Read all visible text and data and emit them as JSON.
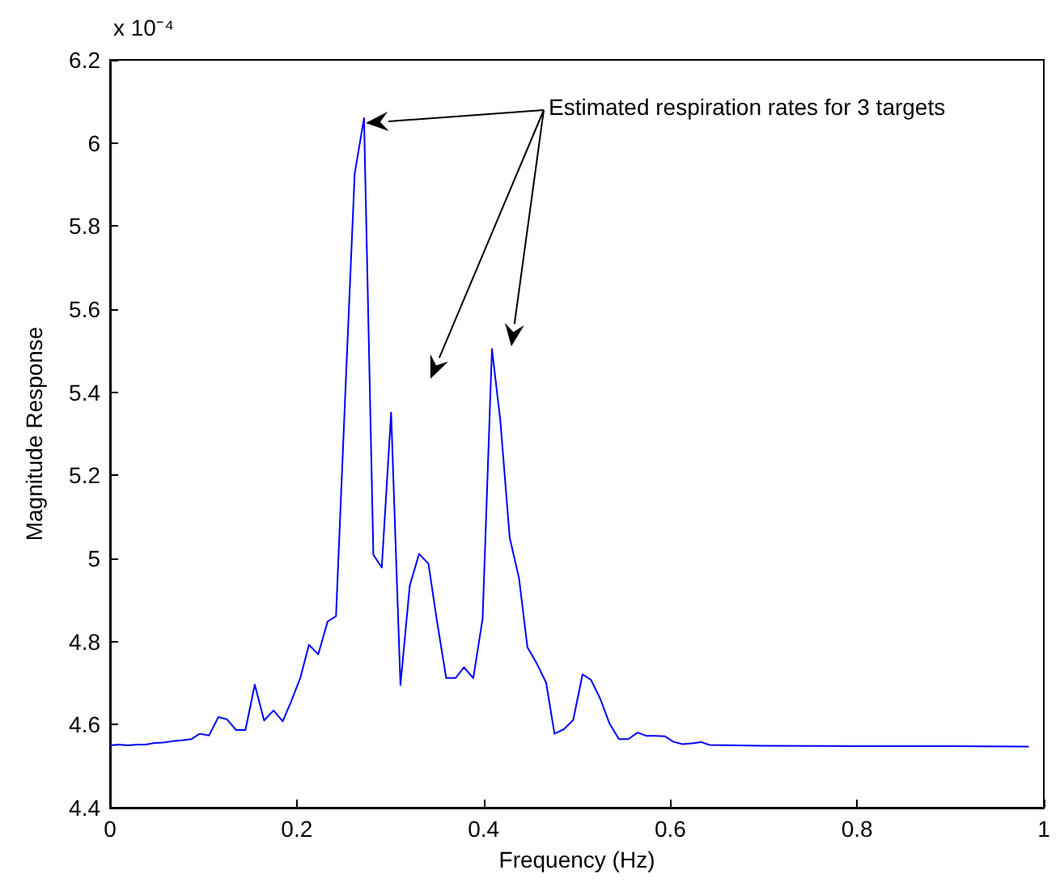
{
  "chart_data": {
    "type": "line",
    "xlabel": "Frequency (Hz)",
    "ylabel": "Magnitude Response",
    "annotations": [
      "Estimated respiration rates for 3 targets",
      "x 10⁻⁴"
    ],
    "x": [
      0,
      0.0096,
      0.019,
      0.029,
      0.038,
      0.048,
      0.057,
      0.067,
      0.077,
      0.087,
      0.096,
      0.106,
      0.116,
      0.125,
      0.135,
      0.145,
      0.155,
      0.165,
      0.175,
      0.185,
      0.194,
      0.204,
      0.213,
      0.223,
      0.233,
      0.242,
      0.252,
      0.262,
      0.272,
      0.282,
      0.291,
      0.301,
      0.311,
      0.321,
      0.331,
      0.341,
      0.35,
      0.36,
      0.37,
      0.379,
      0.389,
      0.399,
      0.409,
      0.418,
      0.428,
      0.438,
      0.447,
      0.457,
      0.467,
      0.476,
      0.486,
      0.496,
      0.506,
      0.515,
      0.525,
      0.535,
      0.545,
      0.555,
      0.565,
      0.574,
      0.584,
      0.594,
      0.603,
      0.613,
      0.623,
      0.633,
      0.642,
      0.7,
      0.8,
      0.9,
      0.984
    ],
    "series": [
      {
        "color": "#0000ff",
        "values": [
          4.55,
          4.552,
          4.55,
          4.552,
          4.552,
          4.556,
          4.557,
          4.56,
          4.562,
          4.565,
          4.578,
          4.574,
          4.618,
          4.613,
          4.587,
          4.587,
          4.696,
          4.61,
          4.634,
          4.608,
          4.656,
          4.714,
          4.792,
          4.769,
          4.848,
          4.861,
          5.4,
          5.926,
          6.06,
          5.009,
          4.978,
          5.351,
          4.695,
          4.935,
          5.011,
          4.987,
          4.851,
          4.712,
          4.712,
          4.738,
          4.712,
          4.855,
          5.504,
          5.331,
          5.05,
          4.952,
          4.786,
          4.747,
          4.701,
          4.578,
          4.589,
          4.611,
          4.721,
          4.708,
          4.662,
          4.602,
          4.565,
          4.565,
          4.581,
          4.573,
          4.573,
          4.572,
          4.559,
          4.553,
          4.555,
          4.558,
          4.551,
          4.549,
          4.548,
          4.548,
          4.547
        ]
      }
    ],
    "xlim": [
      0,
      1
    ],
    "xticks": [
      0,
      0.2,
      0.4,
      0.6,
      0.8,
      1
    ],
    "ylim": [
      4.4,
      6.2
    ],
    "yticks": [
      4.4,
      4.6,
      4.8,
      5,
      5.2,
      5.4,
      5.6,
      5.8,
      6,
      6.2
    ],
    "grid": false,
    "marker": "none",
    "line_style": "solid"
  }
}
